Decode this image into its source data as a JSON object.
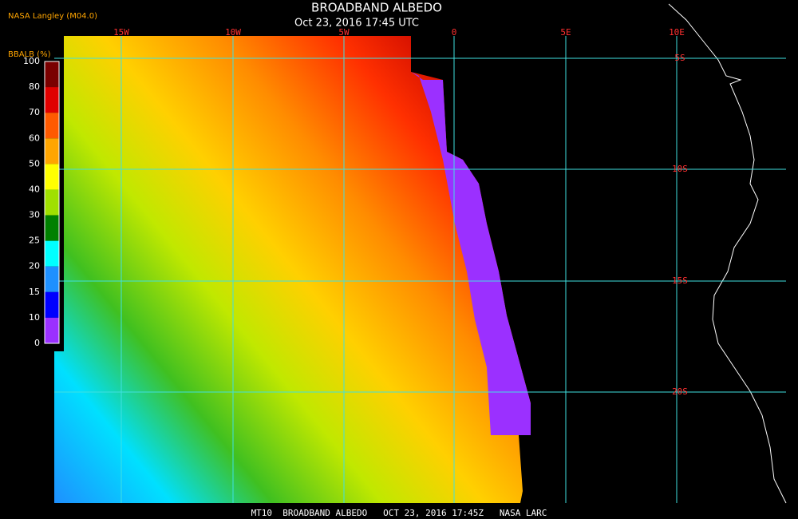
{
  "header": {
    "agency": "NASA Langley (M04.0)",
    "title": "BROADBAND ALBEDO",
    "subtitle": "Oct 23, 2016 17:45 UTC"
  },
  "colorbar": {
    "label": "BBALB (%)",
    "ticks": [
      100,
      80,
      70,
      60,
      50,
      40,
      30,
      25,
      20,
      15,
      10,
      0
    ],
    "colors": [
      "#7a0000",
      "#e00000",
      "#ff5a00",
      "#ffa500",
      "#ffff00",
      "#a0e000",
      "#008000",
      "#00ffff",
      "#1e90ff",
      "#0000ff",
      "#9b30ff"
    ]
  },
  "grid": {
    "longitudes": [
      "15W",
      "10W",
      "5W",
      "0",
      "5E",
      "10E"
    ],
    "latitudes": [
      "5S",
      "10S",
      "15S",
      "20S"
    ]
  },
  "footer": "MT10  BROADBAND ALBEDO   OCT 23, 2016 17:45Z   NASA LARC"
}
